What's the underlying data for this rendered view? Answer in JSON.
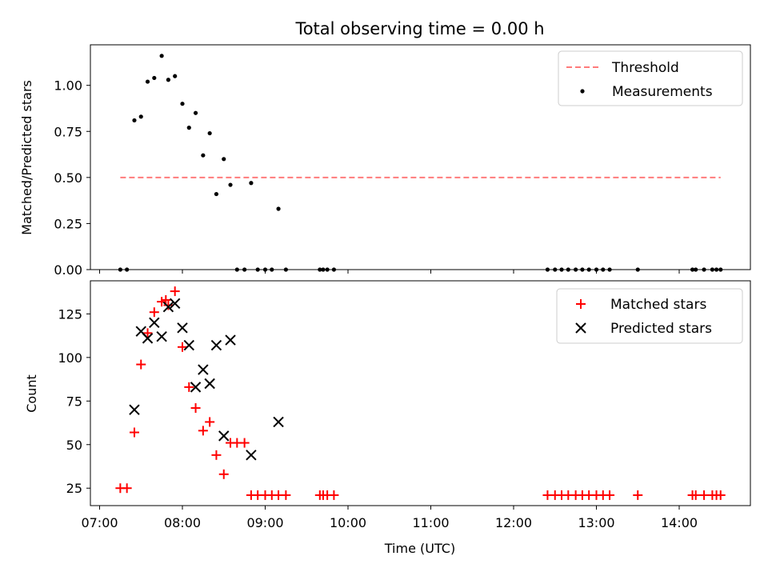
{
  "chart_data": {
    "title": "Total observing time = 0.00 h",
    "xlabel": "Time (UTC)",
    "x_ticks": [
      "07:00",
      "08:00",
      "09:00",
      "10:00",
      "11:00",
      "12:00",
      "13:00",
      "14:00"
    ],
    "top": {
      "type": "scatter",
      "ylabel": "Matched/Predicted stars",
      "ylim": [
        0,
        1.22
      ],
      "y_ticks": [
        "0.00",
        "0.25",
        "0.50",
        "0.75",
        "1.00"
      ],
      "legend_position": "top-right",
      "threshold": {
        "name": "Threshold",
        "value": 0.5,
        "x_range": [
          7.25,
          14.5
        ],
        "color": "#ff7b7b"
      },
      "series": [
        {
          "name": "Measurements",
          "color": "#000000",
          "x": [
            7.25,
            7.33,
            7.42,
            7.5,
            7.58,
            7.66,
            7.75,
            7.83,
            7.91,
            8.0,
            8.08,
            8.16,
            8.25,
            8.33,
            8.41,
            8.5,
            8.58,
            8.66,
            8.75,
            8.83,
            8.91,
            9.0,
            9.08,
            9.16,
            9.25,
            9.66,
            9.7,
            9.75,
            9.83,
            12.41,
            12.5,
            12.58,
            12.66,
            12.75,
            12.83,
            12.91,
            13.0,
            13.08,
            13.16,
            13.5,
            14.16,
            14.2,
            14.3,
            14.4,
            14.45,
            14.5
          ],
          "y": [
            0.0,
            0.0,
            0.81,
            0.83,
            1.02,
            1.04,
            1.16,
            1.03,
            1.05,
            0.9,
            0.77,
            0.85,
            0.62,
            0.74,
            0.41,
            0.6,
            0.46,
            0.0,
            0.0,
            0.47,
            0.0,
            0.0,
            0.0,
            0.33,
            0.0,
            0.0,
            0.0,
            0.0,
            0.0,
            0.0,
            0.0,
            0.0,
            0.0,
            0.0,
            0.0,
            0.0,
            0.0,
            0.0,
            0.0,
            0.0,
            0.0,
            0.0,
            0.0,
            0.0,
            0.0,
            0.0
          ]
        }
      ]
    },
    "bottom": {
      "type": "scatter",
      "ylabel": "Count",
      "ylim": [
        15,
        144
      ],
      "y_ticks": [
        "25",
        "50",
        "75",
        "100",
        "125"
      ],
      "legend_position": "top-right",
      "series": [
        {
          "name": "Matched stars",
          "color": "#ff0000",
          "marker": "plus",
          "x": [
            7.25,
            7.33,
            7.42,
            7.5,
            7.58,
            7.66,
            7.75,
            7.8,
            7.83,
            7.91,
            8.0,
            8.08,
            8.16,
            8.25,
            8.33,
            8.41,
            8.5,
            8.58,
            8.66,
            8.75,
            8.83,
            8.91,
            9.0,
            9.08,
            9.16,
            9.25,
            9.66,
            9.7,
            9.75,
            9.83,
            12.41,
            12.5,
            12.58,
            12.66,
            12.75,
            12.83,
            12.91,
            13.0,
            13.08,
            13.16,
            13.5,
            14.16,
            14.2,
            14.3,
            14.4,
            14.45,
            14.5
          ],
          "y": [
            25,
            25,
            57,
            96,
            114,
            126,
            132,
            133,
            130,
            138,
            106,
            83,
            71,
            58,
            63,
            44,
            33,
            51,
            51,
            51,
            21,
            21,
            21,
            21,
            21,
            21,
            21,
            21,
            21,
            21,
            21,
            21,
            21,
            21,
            21,
            21,
            21,
            21,
            21,
            21,
            21,
            21,
            21,
            21,
            21,
            21,
            21
          ]
        },
        {
          "name": "Predicted stars",
          "color": "#000000",
          "marker": "x",
          "x": [
            7.42,
            7.5,
            7.58,
            7.66,
            7.75,
            7.83,
            7.91,
            8.0,
            8.08,
            8.16,
            8.25,
            8.33,
            8.41,
            8.5,
            8.58,
            8.83,
            9.16
          ],
          "y": [
            70,
            115,
            111,
            120,
            112,
            129,
            131,
            117,
            107,
            83,
            93,
            85,
            107,
            55,
            110,
            44,
            63
          ]
        }
      ]
    }
  }
}
